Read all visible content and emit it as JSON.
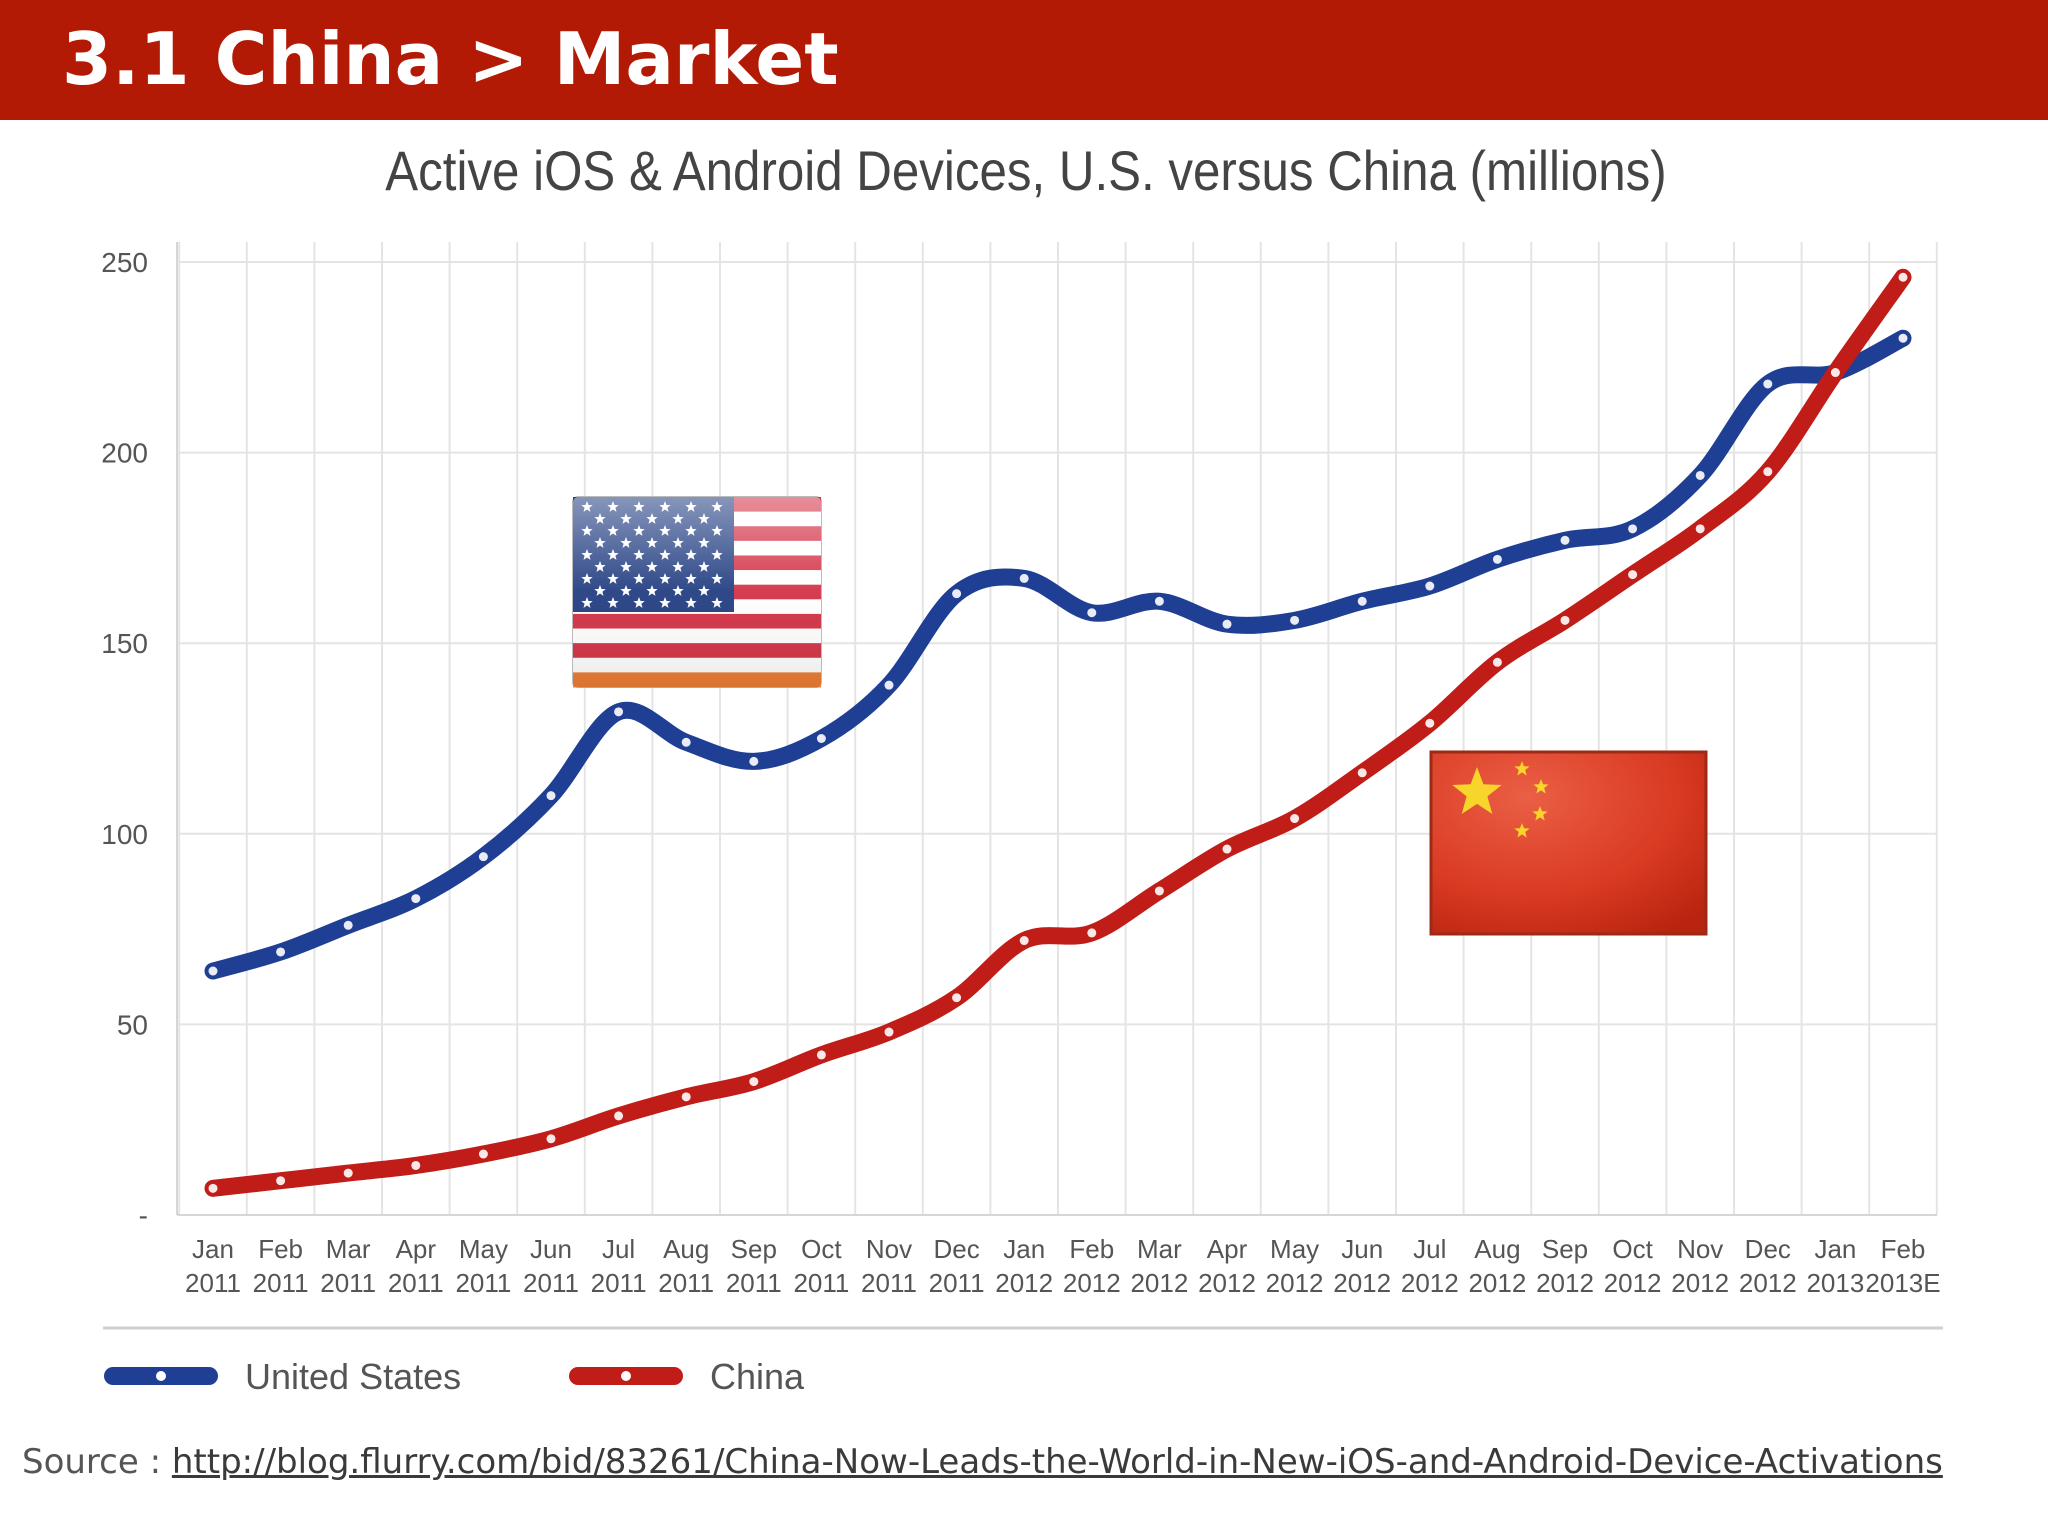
{
  "header": {
    "title": "3.1 China > Market"
  },
  "colors": {
    "header_bg": "#b31a06",
    "us_line": "#1f3f94",
    "china_line": "#c01c18"
  },
  "chart_data": {
    "type": "line",
    "title": "Active iOS & Android Devices, U.S. versus China (millions)",
    "xlabel": "",
    "ylabel": "",
    "ylim": [
      0,
      250
    ],
    "yticks": [
      "-",
      "50",
      "100",
      "150",
      "200",
      "250"
    ],
    "grid": true,
    "legend_position": "bottom-left",
    "categories": [
      [
        "Jan",
        "2011"
      ],
      [
        "Feb",
        "2011"
      ],
      [
        "Mar",
        "2011"
      ],
      [
        "Apr",
        "2011"
      ],
      [
        "May",
        "2011"
      ],
      [
        "Jun",
        "2011"
      ],
      [
        "Jul",
        "2011"
      ],
      [
        "Aug",
        "2011"
      ],
      [
        "Sep",
        "2011"
      ],
      [
        "Oct",
        "2011"
      ],
      [
        "Nov",
        "2011"
      ],
      [
        "Dec",
        "2011"
      ],
      [
        "Jan",
        "2012"
      ],
      [
        "Feb",
        "2012"
      ],
      [
        "Mar",
        "2012"
      ],
      [
        "Apr",
        "2012"
      ],
      [
        "May",
        "2012"
      ],
      [
        "Jun",
        "2012"
      ],
      [
        "Jul",
        "2012"
      ],
      [
        "Aug",
        "2012"
      ],
      [
        "Sep",
        "2012"
      ],
      [
        "Oct",
        "2012"
      ],
      [
        "Nov",
        "2012"
      ],
      [
        "Dec",
        "2012"
      ],
      [
        "Jan",
        "2013"
      ],
      [
        "Feb",
        "2013E"
      ]
    ],
    "series": [
      {
        "name": "United States",
        "color": "#1f3f94",
        "values": [
          64,
          69,
          76,
          83,
          94,
          110,
          132,
          124,
          119,
          125,
          139,
          163,
          167,
          158,
          161,
          155,
          156,
          161,
          165,
          172,
          177,
          180,
          194,
          218,
          221,
          230
        ]
      },
      {
        "name": "China",
        "color": "#c01c18",
        "values": [
          7,
          9,
          11,
          13,
          16,
          20,
          26,
          31,
          35,
          42,
          48,
          57,
          72,
          74,
          85,
          96,
          104,
          116,
          129,
          145,
          156,
          168,
          180,
          195,
          221,
          246
        ]
      }
    ],
    "annotations": [
      "us-flag",
      "china-flag"
    ]
  },
  "source": {
    "prefix": "Source : ",
    "link_text": "http://blog.flurry.com/bid/83261/China-Now-Leads-the-World-in-New-iOS-and-Android-Device-Activations"
  }
}
